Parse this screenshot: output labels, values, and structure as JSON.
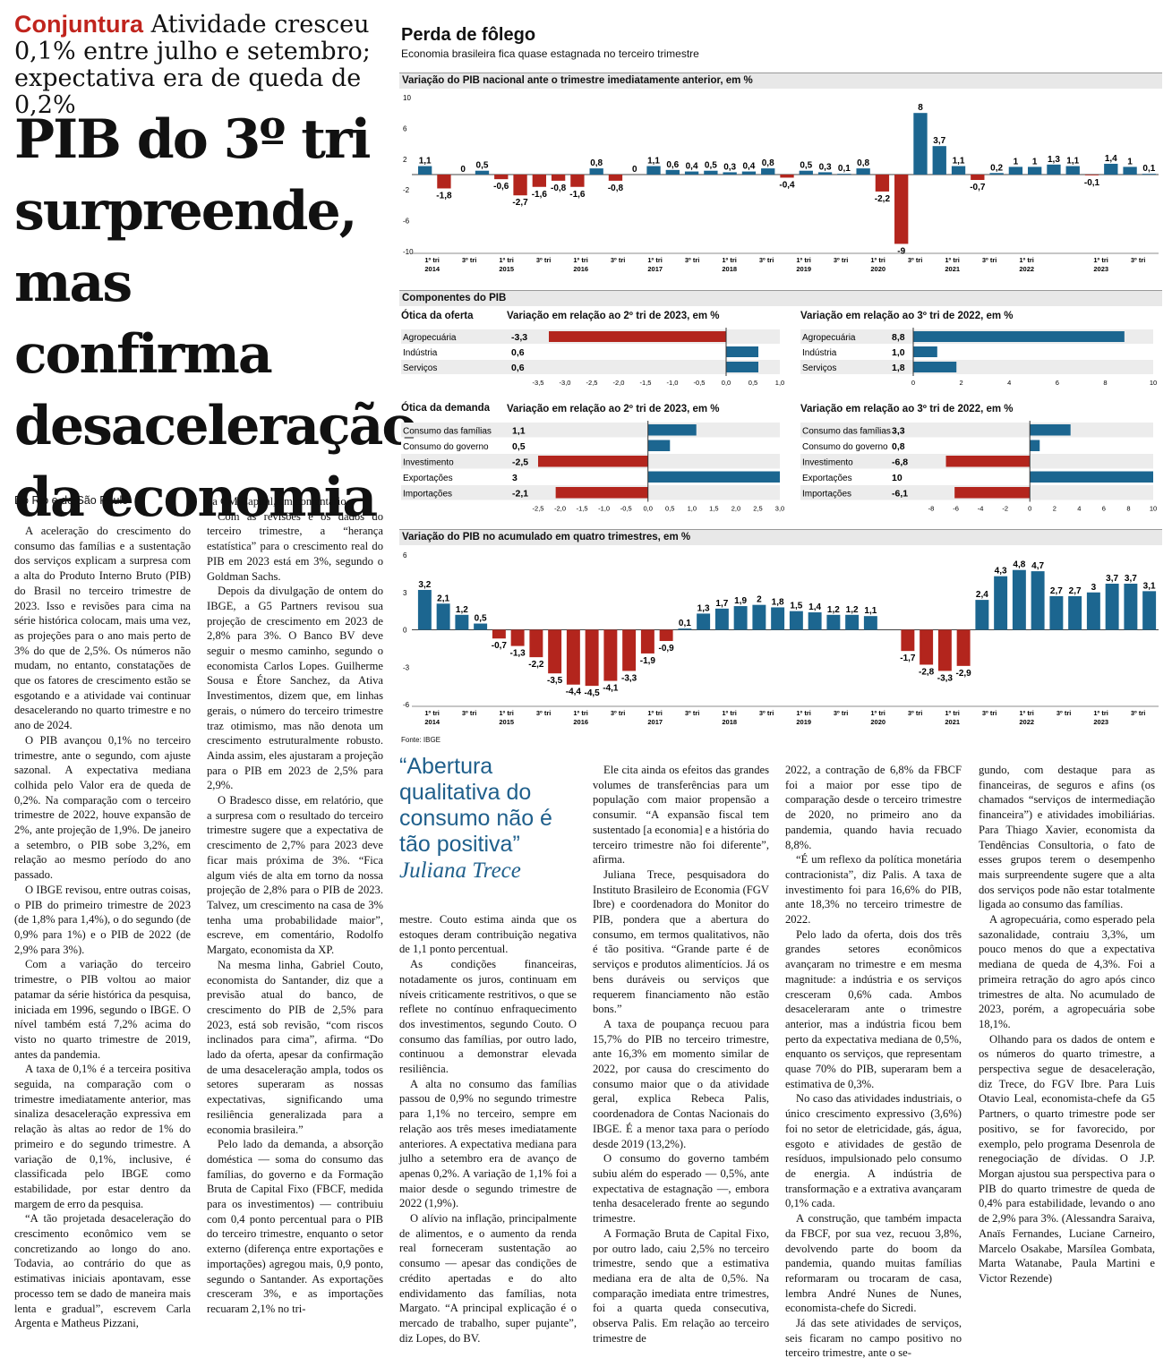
{
  "header": {
    "kicker_tag": "Conjuntura",
    "kicker_text": " Atividade cresceu 0,1% entre julho e setembro; expectativa era de queda de 0,2%",
    "headline_lines": [
      "PIB do 3º tri",
      "surpreende,",
      "mas confirma",
      "desaceleração",
      "da economia"
    ],
    "byline": "Do Rio e de São Paulo"
  },
  "infographic": {
    "title": "Perda de fôlego",
    "subtitle": "Economia brasileira fica quase estagnada no terceiro trimestre",
    "source": "Fonte: IBGE",
    "components_title": "Componentes do PIB",
    "positive_color": "#1c6690",
    "negative_color": "#b3251d"
  },
  "chart_data": [
    {
      "type": "bar",
      "title": "Variação do PIB nacional ante o trimestre imediatamente anterior, em %",
      "x_tick_labels": [
        "1º tri\n2014",
        "3º tri",
        "1º tri\n2015",
        "3º tri",
        "1º tri\n2016",
        "3º tri",
        "1º tri\n2017",
        "3º tri",
        "1º tri\n2018",
        "3º tri",
        "1º tri\n2019",
        "3º tri",
        "1º tri\n2020",
        "3º tri",
        "1º tri\n2021",
        "3º tri",
        "1º tri\n2022",
        "",
        "1º tri\n2023",
        "3º tri"
      ],
      "values": [
        1.1,
        -1.8,
        0,
        0.5,
        -0.6,
        -2.7,
        -1.6,
        -0.8,
        -1.6,
        0.8,
        -0.8,
        0,
        1.1,
        0.6,
        0.4,
        0.5,
        0.3,
        0.4,
        0.8,
        -0.4,
        0.5,
        0.3,
        0.1,
        0.8,
        -2.2,
        -9,
        8,
        3.7,
        1.1,
        -0.7,
        0.2,
        1,
        1,
        1.3,
        1.1,
        -0.1,
        1.4,
        1,
        0.1
      ],
      "value_labels": [
        "1,1",
        "-1,8",
        "0",
        "0,5",
        "-0,6",
        "-2,7",
        "-1,6",
        "-0,8",
        "-1,6",
        "0,8",
        "-0,8",
        "0",
        "1,1",
        "0,6",
        "0,4",
        "0,5",
        "0,3",
        "0,4",
        "0,8",
        "-0,4",
        "0,5",
        "0,3",
        "0,1",
        "0,8",
        "-2,2",
        "-9",
        "8",
        "3,7",
        "1,1",
        "-0,7",
        "0,2",
        "1",
        "1",
        "1,3",
        "1,1",
        "-0,1",
        "1,4",
        "1",
        "0,1"
      ],
      "y_ticks": [
        "10",
        "6",
        "2",
        "-2",
        "-6",
        "-10"
      ],
      "ylim": [
        -10,
        10
      ]
    },
    {
      "type": "bar",
      "title": "Variação em relação ao 2º tri de 2023, em %",
      "group": "Ótica da oferta",
      "categories": [
        "Agropecuária",
        "Indústria",
        "Serviços"
      ],
      "values": [
        -3.3,
        0.6,
        0.6
      ],
      "value_labels": [
        "-3,3",
        "0,6",
        "0,6"
      ],
      "x_ticks": [
        "-3,5",
        "-3,0",
        "-2,5",
        "-2,0",
        "-1,5",
        "-1,0",
        "-0,5",
        "0,0",
        "0,5",
        "1,0"
      ],
      "xlim": [
        -3.5,
        1.0
      ]
    },
    {
      "type": "bar",
      "title": "Variação em relação ao 3º tri de 2022, em %",
      "categories": [
        "Agropecuária",
        "Indústria",
        "Serviços"
      ],
      "values": [
        8.8,
        1.0,
        1.8
      ],
      "value_labels": [
        "8,8",
        "1,0",
        "1,8"
      ],
      "x_ticks": [
        "0",
        "2",
        "4",
        "6",
        "8",
        "10"
      ],
      "xlim": [
        0,
        10
      ]
    },
    {
      "type": "bar",
      "title": "Variação em relação ao 2º tri de 2023, em %",
      "group": "Ótica da demanda",
      "categories": [
        "Consumo das famílias",
        "Consumo do governo",
        "Investimento",
        "Exportações",
        "Importações"
      ],
      "values": [
        1.1,
        0.5,
        -2.5,
        3,
        -2.1
      ],
      "value_labels": [
        "1,1",
        "0,5",
        "-2,5",
        "3",
        "-2,1"
      ],
      "x_ticks": [
        "-2,5",
        "-2,0",
        "-1,5",
        "-1,0",
        "-0,5",
        "0,0",
        "0,5",
        "1,0",
        "1,5",
        "2,0",
        "2,5",
        "3,0"
      ],
      "xlim": [
        -2.5,
        3.0
      ]
    },
    {
      "type": "bar",
      "title": "Variação em relação ao 3º tri de 2022, em %",
      "categories": [
        "Consumo das famílias",
        "Consumo do governo",
        "Investimento",
        "Exportações",
        "Importações"
      ],
      "values": [
        3.3,
        0.8,
        -6.8,
        10,
        -6.1
      ],
      "value_labels": [
        "3,3",
        "0,8",
        "-6,8",
        "10",
        "-6,1"
      ],
      "x_ticks": [
        "-8",
        "-6",
        "-4",
        "-2",
        "0",
        "2",
        "4",
        "6",
        "8",
        "10"
      ],
      "xlim": [
        -8,
        10
      ]
    },
    {
      "type": "bar",
      "title": "Variação do PIB no acumulado em quatro trimestres, em %",
      "x_tick_labels": [
        "1º tri\n2014",
        "3º tri",
        "1º tri\n2015",
        "3º tri",
        "1º tri\n2016",
        "3º tri",
        "1º tri\n2017",
        "3º tri",
        "1º tri\n2018",
        "3º tri",
        "1º tri\n2019",
        "3º tri",
        "1º tri\n2020",
        "3º tri",
        "1º tri\n2021",
        "3º tri",
        "1º tri\n2022",
        "3º tri",
        "1º tri\n2023",
        "3º tri"
      ],
      "values": [
        3.2,
        2.1,
        1.2,
        0.5,
        -0.7,
        -1.3,
        -2.2,
        -3.5,
        -4.4,
        -4.5,
        -4.1,
        -3.3,
        -1.9,
        -0.9,
        0.1,
        1.3,
        1.7,
        1.9,
        2,
        1.8,
        1.5,
        1.4,
        1.2,
        1.2,
        1.1,
        0,
        -1.7,
        -2.8,
        -3.3,
        -2.9,
        2.4,
        4.3,
        4.8,
        4.7,
        2.7,
        2.7,
        3,
        3.7,
        3.7,
        3.1
      ],
      "value_labels": [
        "3,2",
        "2,1",
        "1,2",
        "0,5",
        "-0,7",
        "-1,3",
        "-2,2",
        "-3,5",
        "-4,4",
        "-4,5",
        "-4,1",
        "-3,3",
        "-1,9",
        "-0,9",
        "0,1",
        "1,3",
        "1,7",
        "1,9",
        "2",
        "1,8",
        "1,5",
        "1,4",
        "1,2",
        "1,2",
        "1,1",
        "",
        "-1,7",
        "-2,8",
        "-3,3",
        "-2,9",
        "2,4",
        "4,3",
        "4,8",
        "4,7",
        "2,7",
        "2,7",
        "3",
        "3,7",
        "3,7",
        "3,1"
      ],
      "y_ticks": [
        "6",
        "3",
        "0",
        "-3",
        "-6"
      ],
      "ylim": [
        -6,
        6
      ]
    }
  ],
  "quote": {
    "text": "“Abertura qualitativa do consumo não é tão positiva”",
    "author": "Juliana Trece"
  },
  "columns": [
    [
      "A aceleração do crescimento do consumo das famílias e a sustentação dos serviços explicam a surpresa com a alta do Produto Interno Bruto (PIB) do Brasil no terceiro trimestre de 2023. Isso e revisões para cima na série histórica colocam, mais uma vez, as projeções para o ano mais perto de 3% do que de 2,5%. Os números não mudam, no entanto, constatações de que os fatores de crescimento estão se esgotando e a atividade vai continuar desacelerando no quarto trimestre e no ano de 2024.",
      "O PIB avançou 0,1% no terceiro trimestre, ante o segundo, com ajuste sazonal. A expectativa mediana colhida pelo Valor era de queda de 0,2%. Na comparação com o terceiro trimestre de 2022, houve expansão de 2%, ante projeção de 1,9%. De janeiro a setembro, o PIB sobe 3,2%, em relação ao mesmo período do ano passado.",
      "O IBGE revisou, entre outras coisas, o PIB do primeiro trimestre de 2023 (de 1,8% para 1,4%), o do segundo (de 0,9% para 1%) e o PIB de 2022 (de 2,9% para 3%).",
      "Com a variação do terceiro trimestre, o PIB voltou ao maior patamar da série histórica da pesquisa, iniciada em 1996, segundo o IBGE. O nível também está 7,2% acima do visto no quarto trimestre de 2019, antes da pandemia.",
      "A taxa de 0,1% é a terceira positiva seguida, na comparação com o trimestre imediatamente anterior, mas sinaliza desaceleração expressiva em relação às altas ao redor de 1% do primeiro e do segundo trimestre. A variação de 0,1%, inclusive, é classificada pelo IBGE como estabilidade, por estar dentro da margem de erro da pesquisa.",
      "“A tão projetada desaceleração do crescimento econômico vem se concretizando ao longo do ano. Todavia, ao contrário do que as estimativas iniciais apontavam, esse processo tem se dado de maneira mais lenta e gradual”, escrevem Carla Argenta e Matheus Pizzani,"
    ],
    [
      "da CM Capital, em comentário.",
      "Com as revisões e os dados do terceiro trimestre, a “herança estatística” para o crescimento real do PIB em 2023 está em 3%, segundo o Goldman Sachs.",
      "Depois da divulgação de ontem do IBGE, a G5 Partners revisou sua projeção de crescimento em 2023 de 2,8% para 3%. O Banco BV deve seguir o mesmo caminho, segundo o economista Carlos Lopes. Guilherme Sousa e Étore Sanchez, da Ativa Investimentos, dizem que, em linhas gerais, o número do terceiro trimestre traz otimismo, mas não denota um crescimento estruturalmente robusto. Ainda assim, eles ajustaram a projeção para o PIB em 2023 de 2,5% para 2,9%.",
      "O Bradesco disse, em relatório, que a surpresa com o resultado do terceiro trimestre sugere que a expectativa de crescimento de 2,7% para 2023 deve ficar mais próxima de 3%. “Fica algum viés de alta em torno da nossa projeção de 2,8% para o PIB de 2023. Talvez, um crescimento na casa de 3% tenha uma probabilidade maior”, escreve, em comentário, Rodolfo Margato, economista da XP.",
      "Na mesma linha, Gabriel Couto, economista do Santander, diz que a previsão atual do banco, de crescimento do PIB de 2,5% para 2023, está sob revisão, “com riscos inclinados para cima”, afirma. “Do lado da oferta, apesar da confirmação de uma desaceleração ampla, todos os setores superaram as nossas expectativas, significando uma resiliência generalizada para a economia brasileira.”",
      "Pelo lado da demanda, a absorção doméstica — soma do consumo das famílias, do governo e da Formação Bruta de Capital Fixo (FBCF, medida para os investimentos) — contribuiu com 0,4 ponto percentual para o PIB do terceiro trimestre, enquanto o setor externo (diferença entre exportações e importações) agregou mais, 0,9 ponto, segundo o Santander. As exportações cresceram 3%, e as importações recuaram 2,1% no tri-"
    ],
    [
      "mestre. Couto estima ainda que os estoques deram contribuição negativa de 1,1 ponto percentual.",
      "As condições financeiras, notadamente os juros, continuam em níveis criticamente restritivos, o que se reflete no contínuo enfraquecimento dos investimentos, segundo Couto. O consumo das famílias, por outro lado, continuou a demonstrar elevada resiliência.",
      "A alta no consumo das famílias passou de 0,9% no segundo trimestre para 1,1% no terceiro, sempre em relação aos três meses imediatamente anteriores. A expectativa mediana para julho a setembro era de avanço de apenas 0,2%. A variação de 1,1% foi a maior desde o segundo trimestre de 2022 (1,9%).",
      "O alívio na inflação, principalmente de alimentos, e o aumento da renda real forneceram sustentação ao consumo — apesar das condições de crédito apertadas e do alto endividamento das famílias, nota Margato. “A principal explicação é o mercado de trabalho, super pujante”, diz Lopes, do BV."
    ],
    [
      "Ele cita ainda os efeitos das grandes volumes de transferências para um população com maior propensão a consumir. “A expansão fiscal tem sustentado [a economia] e a história do terceiro trimestre não foi diferente”, afirma.",
      "Juliana Trece, pesquisadora do Instituto Brasileiro de Economia (FGV Ibre) e coordenadora do Monitor do PIB, pondera que a abertura do consumo, em termos qualitativos, não é tão positiva. “Grande parte é de serviços e produtos alimentícios. Já os bens duráveis ou serviços que requerem financiamento não estão bons.”",
      "A taxa de poupança recuou para 15,7% do PIB no terceiro trimestre, ante 16,3% em momento similar de 2022, por causa do crescimento do consumo maior que o da atividade geral, explica Rebeca Palis, coordenadora de Contas Nacionais do IBGE. É a menor taxa para o período desde 2019 (13,2%).",
      "O consumo do governo também subiu além do esperado — 0,5%, ante expectativa de estagnação —, embora tenha desacelerado frente ao segundo trimestre.",
      "A Formação Bruta de Capital Fixo, por outro lado, caiu 2,5% no terceiro trimestre, sendo que a estimativa mediana era de alta de 0,5%. Na comparação imediata entre trimestres, foi a quarta queda consecutiva, observa Palis. Em relação ao terceiro trimestre de"
    ],
    [
      "2022, a contração de 6,8% da FBCF foi a maior por esse tipo de comparação desde o terceiro trimestre de 2020, no primeiro ano da pandemia, quando havia recuado 8,8%.",
      "“É um reflexo da política monetária contracionista”, diz Palis. A taxa de investimento foi para 16,6% do PIB, ante 18,3% no terceiro trimestre de 2022.",
      "Pelo lado da oferta, dois dos três grandes setores econômicos avançaram no trimestre e em mesma magnitude: a indústria e os serviços cresceram 0,6% cada. Ambos desaceleraram ante o trimestre anterior, mas a indústria ficou bem perto da expectativa mediana de 0,5%, enquanto os serviços, que representam quase 70% do PIB, superaram bem a estimativa de 0,3%.",
      "No caso das atividades industriais, o único crescimento expressivo (3,6%) foi no setor de eletricidade, gás, água, esgoto e atividades de gestão de resíduos, impulsionado pelo consumo de energia. A indústria de transformação e a extrativa avançaram 0,1% cada.",
      "A construção, que também impacta da FBCF, por sua vez, recuou 3,8%, devolvendo parte do boom da pandemia, quando muitas famílias reformaram ou trocaram de casa, lembra André Nunes de Nunes, economista-chefe do Sicredi.",
      "Já das sete atividades de serviços, seis ficaram no campo positivo no terceiro trimestre, ante o se-"
    ],
    [
      "gundo, com destaque para as financeiras, de seguros e afins (os chamados “serviços de intermediação financeira”) e atividades imobiliárias. Para Thiago Xavier, economista da Tendências Consultoria, o fato de esses grupos terem o desempenho mais surpreendente sugere que a alta dos serviços pode não estar totalmente ligada ao consumo das famílias.",
      "A agropecuária, como esperado pela sazonalidade, contraiu 3,3%, um pouco menos do que a expectativa mediana de queda de 4,3%. Foi a primeira retração do agro após cinco trimestres de alta. No acumulado de 2023, porém, a agropecuária sobe 18,1%.",
      "Olhando para os dados de ontem e os números do quarto trimestre, a perspectiva segue de desaceleração, diz Trece, do FGV Ibre. Para Luis Otavio Leal, economista-chefe da G5 Partners, o quarto trimestre pode ser positivo, se for favorecido, por exemplo, pelo programa Desenrola de renegociação de dívidas. O J.P. Morgan ajustou sua perspectiva para o PIB do quarto trimestre de queda de 0,4% para estabilidade, levando o ano de 2,9% para 3%. (Alessandra Saraiva, Anaïs Fernandes, Luciane Carneiro, Marcelo Osakabe, Marsílea Gombata, Marta Watanabe, Paula Martini e Victor Rezende)"
    ]
  ]
}
